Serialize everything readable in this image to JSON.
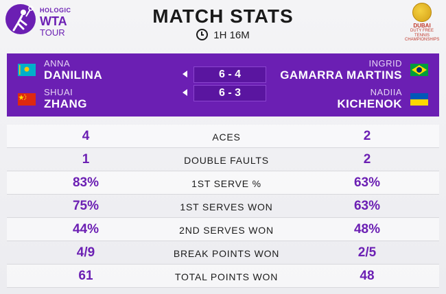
{
  "header": {
    "logo": {
      "hologic": "HOLOGIC",
      "mark": "WTA",
      "tour": "TOUR"
    },
    "title": "MATCH STATS",
    "duration": "1H 16M",
    "sponsor": {
      "line1": "DUBAI",
      "line2": "DUTY FREE",
      "line3": "TENNIS",
      "line4": "CHAMPIONSHIPS"
    }
  },
  "players": {
    "left": [
      {
        "first": "ANNA",
        "last": "DANILINA",
        "flag": "kazakhstan-flag"
      },
      {
        "first": "SHUAI",
        "last": "ZHANG",
        "flag": "china-flag"
      }
    ],
    "right": [
      {
        "first": "INGRID",
        "last": "GAMARRA MARTINS",
        "flag": "brazil-flag"
      },
      {
        "first": "NADIIA",
        "last": "KICHENOK",
        "flag": "ukraine-flag"
      }
    ],
    "sets": [
      {
        "score": "6 - 4"
      },
      {
        "score": "6 - 3"
      }
    ]
  },
  "stats": [
    {
      "label": "ACES",
      "left": "4",
      "right": "2"
    },
    {
      "label": "DOUBLE FAULTS",
      "left": "1",
      "right": "2"
    },
    {
      "label": "1ST SERVE %",
      "left": "83%",
      "right": "63%"
    },
    {
      "label": "1ST SERVES WON",
      "left": "75%",
      "right": "63%"
    },
    {
      "label": "2ND SERVES WON",
      "left": "44%",
      "right": "48%"
    },
    {
      "label": "BREAK POINTS WON",
      "left": "4/9",
      "right": "2/5"
    },
    {
      "label": "TOTAL POINTS WON",
      "left": "61",
      "right": "48"
    }
  ],
  "colors": {
    "accent": "#6b1fb3",
    "text": "#1a1a1a",
    "panel": "#6b1fb3"
  }
}
